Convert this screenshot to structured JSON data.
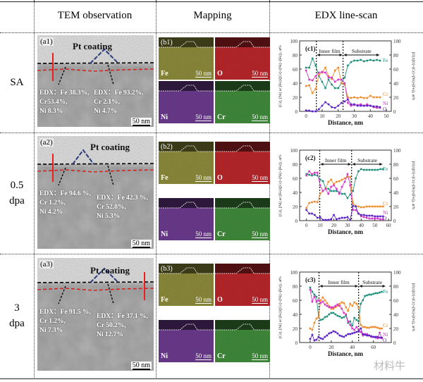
{
  "header": {
    "col_tem": "TEM observation",
    "col_mapping": "Mapping",
    "col_edx": "EDX line-scan"
  },
  "rows": [
    {
      "label_lines": [
        "SA"
      ],
      "tem": {
        "panel_label": "(a1)",
        "coating_label": "Pt coating",
        "edx_left": [
          "EDX：Fe 38.3%,",
          "Cr53.4%,",
          "Ni 8.3%"
        ],
        "edx_right": [
          "EDX：Fe 93.2%,",
          "Cr 2.1%,",
          "Ni 4.7%"
        ],
        "scale": "50 nm"
      },
      "mapping": {
        "panel_label": "(b1)",
        "elements": [
          "Fe",
          "O",
          "Ni",
          "Cr"
        ],
        "scale": "50 nm"
      }
    },
    {
      "label_lines": [
        "0.5",
        "dpa"
      ],
      "tem": {
        "panel_label": "(a2)",
        "coating_label": "Pt coating",
        "edx_left": [
          "EDX：Fe 94.6 %,",
          "Cr 1.2%,",
          "Ni 4.2%"
        ],
        "edx_right": [
          "EDX：Fe 42.3 %,",
          "Cr 52.8%,",
          "Ni 5.3%"
        ],
        "scale": "50 nm"
      },
      "mapping": {
        "panel_label": "(b2)",
        "elements": [
          "Fe",
          "O",
          "Ni",
          "Cr"
        ],
        "scale": "50 nm"
      }
    },
    {
      "label_lines": [
        "3",
        "dpa"
      ],
      "tem": {
        "panel_label": "(a3)",
        "coating_label": "Pt coating",
        "edx_left": [
          "EDX：Fe 91.5 %,",
          "Cr 1.2%,",
          "Ni 7.3%"
        ],
        "edx_right": [
          "EDX：Fe 37.1 %,",
          "Cr 50.2%,",
          "Ni 12.7%"
        ],
        "scale": "50 nm"
      },
      "mapping": {
        "panel_label": "(b3)",
        "elements": [
          "Fe",
          "O",
          "Ni",
          "Cr"
        ],
        "scale": "50 nm"
      }
    }
  ],
  "map_colors": {
    "Fe": "#8c8a3a",
    "O": "#b8262a",
    "Ni": "#6a3a8c",
    "Cr": "#3f8a3a"
  },
  "series_colors": {
    "Fe": "#1f8f7a",
    "Cr": "#f08a2c",
    "Ni": "#d436c8",
    "O": "#5a22c4"
  },
  "watermark": "材料牛",
  "chart_data": [
    {
      "type": "line",
      "panel_label": "(c1)",
      "xlabel": "Distance, nm",
      "ylabel_left": "[Cr], [Ni] or [Fe]/([Cr]+[Ni]+[Fe]), at%",
      "ylabel_right": "[O]/([O]+[Cr]+[Ni]+[Fe]), at%",
      "xlim": [
        -4,
        53
      ],
      "ylim": [
        0,
        100
      ],
      "xticks": [
        0,
        10,
        20,
        30,
        40,
        50
      ],
      "yticks": [
        0,
        20,
        40,
        60,
        80,
        100
      ],
      "regions": [
        {
          "label": "Inner film",
          "from": 6.4,
          "to": 23
        },
        {
          "label": "Substrate",
          "from": 23,
          "to": 46
        }
      ],
      "x": [
        0,
        2,
        4,
        6,
        8,
        10,
        12,
        14,
        16,
        18,
        20,
        22,
        24,
        26,
        28,
        30,
        32,
        34,
        36,
        38,
        40,
        42,
        44,
        46
      ],
      "series": [
        {
          "name": "Fe",
          "values": [
            62,
            62,
            75,
            65,
            50,
            42,
            33,
            45,
            38,
            33,
            33,
            40,
            48,
            65,
            70,
            72,
            72,
            73,
            71,
            72,
            73,
            72,
            73,
            72
          ]
        },
        {
          "name": "Cr",
          "values": [
            36,
            37,
            26,
            32,
            52,
            55,
            62,
            50,
            46,
            58,
            62,
            40,
            38,
            20,
            19,
            20,
            19,
            20,
            19,
            19,
            22,
            20,
            20,
            20
          ]
        },
        {
          "name": "Ni",
          "values": [
            58,
            45,
            44,
            50,
            55,
            56,
            55,
            48,
            48,
            42,
            45,
            45,
            40,
            12,
            8,
            9,
            9,
            10,
            8,
            10,
            8,
            6,
            5,
            5
          ]
        },
        {
          "name": "O",
          "values": [
            1,
            1,
            0,
            0,
            3,
            8,
            13,
            10,
            6,
            5,
            8,
            12,
            14,
            17,
            10,
            10,
            8,
            8,
            8,
            8,
            8,
            7,
            7,
            6
          ]
        }
      ]
    },
    {
      "type": "line",
      "panel_label": "(c2)",
      "xlabel": "Distance, nm",
      "ylabel_left": "[Cr], [Ni] or [Fe]/([Cr]+[Ni]+[Fe]), at%",
      "ylabel_right": "[O]/([O]+[Cr]+[Ni]+[Fe]), at%",
      "xlim": [
        -5,
        62
      ],
      "ylim": [
        0,
        100
      ],
      "xticks": [
        0,
        10,
        20,
        30,
        40,
        50,
        60
      ],
      "yticks": [
        0,
        20,
        40,
        60,
        80,
        100
      ],
      "regions": [
        {
          "label": "Inner film",
          "from": 9.7,
          "to": 33
        },
        {
          "label": "Substrate",
          "from": 33,
          "to": 56
        }
      ],
      "x": [
        0,
        2,
        4,
        6,
        8,
        10,
        12,
        14,
        16,
        18,
        20,
        22,
        24,
        26,
        28,
        30,
        32,
        34,
        36,
        38,
        40,
        42,
        44,
        46,
        48,
        50,
        52,
        54,
        56
      ],
      "series": [
        {
          "name": "Fe",
          "values": [
            66,
            65,
            64,
            65,
            64,
            58,
            56,
            46,
            45,
            42,
            42,
            42,
            40,
            38,
            38,
            32,
            37,
            42,
            60,
            70,
            73,
            72,
            72,
            72,
            72,
            72,
            72,
            73,
            73
          ]
        },
        {
          "name": "Cr",
          "values": [
            18,
            25,
            26,
            27,
            26,
            38,
            42,
            45,
            55,
            58,
            52,
            55,
            56,
            58,
            60,
            62,
            62,
            25,
            21,
            20,
            19,
            19,
            20,
            20,
            20,
            20,
            20,
            20,
            20
          ]
        },
        {
          "name": "Ni",
          "values": [
            64,
            70,
            66,
            68,
            68,
            50,
            42,
            45,
            38,
            48,
            50,
            45,
            38,
            48,
            55,
            66,
            50,
            15,
            15,
            10,
            6,
            5,
            4,
            3,
            3,
            3,
            3,
            2,
            2
          ]
        },
        {
          "name": "O",
          "values": [
            15,
            10,
            10,
            8,
            4,
            5,
            1,
            1,
            1,
            2,
            8,
            2,
            3,
            4,
            4,
            5,
            1,
            21,
            20,
            10,
            8,
            8,
            7,
            7,
            7,
            6,
            6,
            6,
            6
          ]
        }
      ]
    },
    {
      "type": "line",
      "panel_label": "(c3)",
      "xlabel": "Distance, nm",
      "ylabel_left": "[Cr], [Ni] or [Fe]/([Cr]+[Ni]+[Fe]), at%",
      "ylabel_right": "[O]/([O]+[Cr]+[Ni]+[Fe]), at%",
      "xlim": [
        -10,
        77
      ],
      "ylim": [
        0,
        100
      ],
      "xticks": [
        0,
        20,
        40,
        60
      ],
      "yticks": [
        0,
        20,
        40,
        60,
        80,
        100
      ],
      "regions": [
        {
          "label": "Inner film",
          "from": 8.4,
          "to": 46
        },
        {
          "label": "Substrate",
          "from": 46,
          "to": 72
        }
      ],
      "x": [
        0,
        2,
        4,
        6,
        8,
        10,
        12,
        14,
        16,
        18,
        20,
        22,
        24,
        26,
        28,
        30,
        32,
        34,
        36,
        38,
        40,
        42,
        44,
        46,
        48,
        50,
        52,
        54,
        56,
        58,
        60,
        62,
        64,
        66,
        68
      ],
      "series": [
        {
          "name": "Fe",
          "values": [
            78,
            72,
            68,
            65,
            36,
            32,
            33,
            36,
            37,
            40,
            42,
            42,
            40,
            38,
            37,
            35,
            36,
            38,
            28,
            30,
            24,
            35,
            32,
            30,
            55,
            60,
            66,
            67,
            68,
            68,
            69,
            70,
            70,
            71,
            72
          ]
        },
        {
          "name": "Cr",
          "values": [
            20,
            18,
            28,
            34,
            36,
            60,
            64,
            60,
            56,
            52,
            48,
            48,
            50,
            52,
            55,
            57,
            56,
            50,
            45,
            55,
            52,
            57,
            55,
            50,
            25,
            22,
            22,
            21,
            21,
            22,
            22,
            22,
            21,
            20,
            20
          ]
        },
        {
          "name": "Ni",
          "values": [
            75,
            58,
            65,
            58,
            60,
            56,
            58,
            54,
            52,
            50,
            50,
            50,
            52,
            54,
            52,
            48,
            42,
            40,
            30,
            25,
            20,
            18,
            22,
            18,
            15,
            10,
            12,
            12,
            10,
            8,
            8,
            7,
            6,
            14,
            6
          ]
        },
        {
          "name": "O",
          "values": [
            5,
            11,
            3,
            4,
            8,
            6,
            5,
            8,
            10,
            13,
            14,
            16,
            15,
            13,
            10,
            9,
            8,
            10,
            12,
            12,
            13,
            14,
            15,
            16,
            20,
            12,
            11,
            10,
            10,
            9,
            8,
            8,
            8,
            7,
            7
          ]
        }
      ]
    }
  ]
}
